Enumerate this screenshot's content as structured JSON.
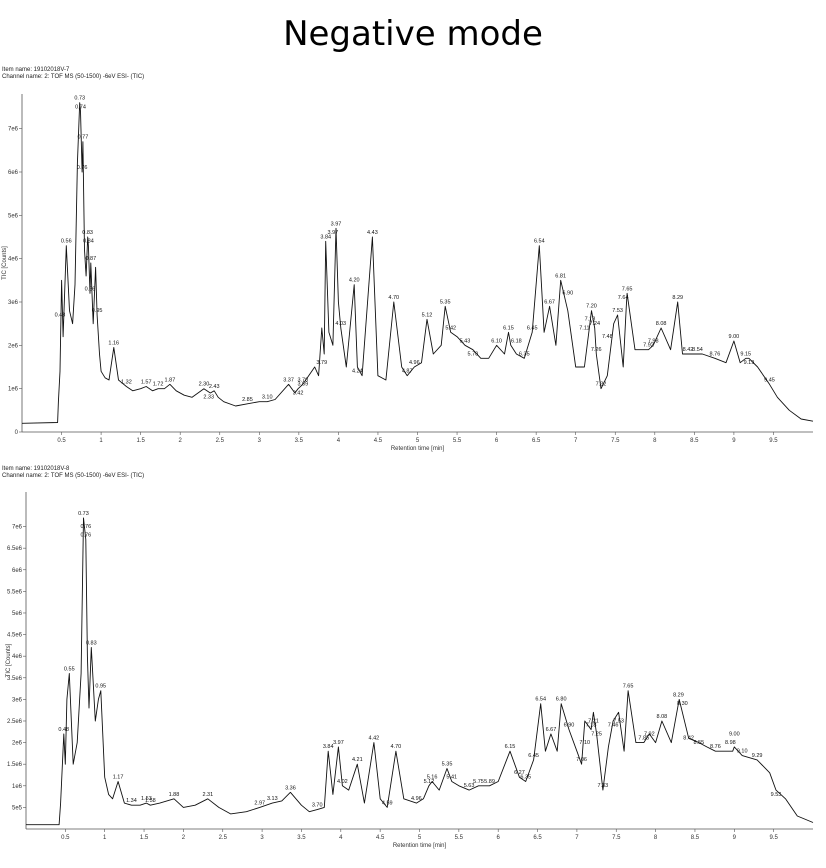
{
  "heading": "Negative mode",
  "chart_data": [
    {
      "type": "line",
      "item_name": "Item name: 19102018V-7",
      "channel_name": "Channel name: 2: TOF MS (50-1500) -6eV ESI- (TIC)",
      "xlabel": "Retention time [min]",
      "ylabel": "TIC [Counts]",
      "xlim": [
        0,
        10
      ],
      "ylim": [
        0,
        7800000
      ],
      "xticks": [
        0.5,
        1,
        1.5,
        2,
        2.5,
        3,
        3.5,
        4,
        4.5,
        5,
        5.5,
        6,
        6.5,
        7,
        7.5,
        8,
        8.5,
        9,
        9.5
      ],
      "xtick_labels": [
        "0.5",
        "1",
        "1.5",
        "2",
        "2.5",
        "3",
        "3.5",
        "4",
        "4.5",
        "5",
        "5.5",
        "6",
        "6.5",
        "7",
        "7.5",
        "8",
        "8.5",
        "9",
        "9.5"
      ],
      "yticks": [
        0,
        1000000,
        2000000,
        3000000,
        4000000,
        5000000,
        6000000,
        7000000
      ],
      "ytick_labels": [
        "0",
        "1e6",
        "2e6",
        "3e6",
        "4e6",
        "5e6",
        "6e6",
        "7e6"
      ],
      "x": [
        0,
        0.45,
        0.46,
        0.48,
        0.5,
        0.52,
        0.56,
        0.6,
        0.64,
        0.67,
        0.7,
        0.73,
        0.74,
        0.76,
        0.77,
        0.79,
        0.81,
        0.83,
        0.84,
        0.86,
        0.87,
        0.9,
        0.93,
        0.95,
        0.98,
        1.0,
        1.05,
        1.1,
        1.16,
        1.22,
        1.32,
        1.4,
        1.5,
        1.57,
        1.65,
        1.72,
        1.8,
        1.87,
        1.95,
        2.05,
        2.15,
        2.3,
        2.38,
        2.43,
        2.48,
        2.55,
        2.7,
        2.85,
        3.0,
        3.1,
        3.2,
        3.37,
        3.45,
        3.49,
        3.55,
        3.7,
        3.75,
        3.79,
        3.82,
        3.84,
        3.88,
        3.93,
        3.97,
        4.0,
        4.03,
        4.1,
        4.2,
        4.24,
        4.3,
        4.43,
        4.5,
        4.6,
        4.7,
        4.8,
        4.87,
        4.96,
        5.05,
        5.12,
        5.2,
        5.3,
        5.35,
        5.42,
        5.5,
        5.6,
        5.7,
        5.8,
        5.9,
        6.0,
        6.1,
        6.15,
        6.18,
        6.25,
        6.35,
        6.45,
        6.54,
        6.6,
        6.67,
        6.75,
        6.81,
        6.9,
        7.0,
        7.11,
        7.18,
        7.2,
        7.24,
        7.26,
        7.32,
        7.4,
        7.48,
        7.53,
        7.6,
        7.64,
        7.65,
        7.75,
        7.92,
        7.98,
        8.08,
        8.2,
        8.29,
        8.35,
        8.42,
        8.54,
        8.6,
        8.76,
        8.9,
        9.0,
        9.08,
        9.15,
        9.19,
        9.3,
        9.45,
        9.55,
        9.7,
        9.85,
        10.0
      ],
      "y": [
        200000,
        220000,
        700000,
        1400000,
        3500000,
        2200000,
        4300000,
        2800000,
        2500000,
        3400000,
        6200000,
        7600000,
        7400000,
        6000000,
        6700000,
        4200000,
        3600000,
        4500000,
        4300000,
        3200000,
        3900000,
        2500000,
        3800000,
        2700000,
        1800000,
        1400000,
        1250000,
        1200000,
        1950000,
        1200000,
        1050000,
        950000,
        1000000,
        1050000,
        950000,
        1000000,
        1000000,
        1100000,
        950000,
        850000,
        800000,
        1000000,
        900000,
        950000,
        800000,
        700000,
        600000,
        650000,
        700000,
        700000,
        750000,
        1100000,
        900000,
        1000000,
        1100000,
        1500000,
        1300000,
        2400000,
        1800000,
        4400000,
        2300000,
        2000000,
        4700000,
        3000000,
        2400000,
        1500000,
        3400000,
        1500000,
        1300000,
        4500000,
        1300000,
        1200000,
        3000000,
        1500000,
        1300000,
        1500000,
        1600000,
        2600000,
        1800000,
        2000000,
        2900000,
        2300000,
        2200000,
        2000000,
        1900000,
        1700000,
        1700000,
        2000000,
        1800000,
        2300000,
        2000000,
        1800000,
        1700000,
        2300000,
        4300000,
        2300000,
        2900000,
        2000000,
        3500000,
        2800000,
        1500000,
        1500000,
        2500000,
        2800000,
        2400000,
        1800000,
        1000000,
        1300000,
        2500000,
        2700000,
        1500000,
        2900000,
        3200000,
        1900000,
        1900000,
        2000000,
        2400000,
        1900000,
        3000000,
        1800000,
        1800000,
        1800000,
        1800000,
        1700000,
        1600000,
        2100000,
        1600000,
        1700000,
        1700000,
        1500000,
        1100000,
        800000,
        500000,
        300000,
        250000
      ]
    },
    {
      "type": "line",
      "item_name": "Item name: 19102018V-8",
      "channel_name": "Channel name: 2: TOF MS (50-1500) -6eV ESI- (TIC)",
      "xlabel": "Retention time [min]",
      "ylabel": "TIC [Counts]",
      "xlim": [
        0,
        10
      ],
      "ylim": [
        0,
        7800000
      ],
      "xticks": [
        0.5,
        1,
        1.5,
        2,
        2.5,
        3,
        3.5,
        4,
        4.5,
        5,
        5.5,
        6,
        6.5,
        7,
        7.5,
        8,
        8.5,
        9,
        9.5
      ],
      "xtick_labels": [
        "0.5",
        "1",
        "1.5",
        "2",
        "2.5",
        "3",
        "3.5",
        "4",
        "4.5",
        "5",
        "5.5",
        "6",
        "6.5",
        "7",
        "7.5",
        "8",
        "8.5",
        "9",
        "9.5"
      ],
      "yticks": [
        500000,
        1000000,
        1500000,
        2000000,
        2500000,
        3000000,
        3500000,
        4000000,
        4500000,
        5000000,
        5500000,
        6000000,
        6500000,
        7000000
      ],
      "ytick_labels": [
        "5e5",
        "1e6",
        "1.5e6",
        "2e6",
        "2.5e6",
        "3e6",
        "3.5e6",
        "4e6",
        "4.5e6",
        "5e6",
        "5.5e6",
        "6e6",
        "6.5e6",
        "7e6"
      ],
      "x": [
        0,
        0.42,
        0.44,
        0.48,
        0.5,
        0.52,
        0.55,
        0.6,
        0.65,
        0.7,
        0.73,
        0.76,
        0.78,
        0.8,
        0.83,
        0.88,
        0.92,
        0.95,
        1.0,
        1.05,
        1.1,
        1.17,
        1.25,
        1.34,
        1.45,
        1.53,
        1.58,
        1.7,
        1.88,
        2.0,
        2.15,
        2.31,
        2.45,
        2.6,
        2.8,
        2.97,
        3.13,
        3.25,
        3.36,
        3.5,
        3.6,
        3.7,
        3.79,
        3.84,
        3.9,
        3.97,
        4.02,
        4.1,
        4.21,
        4.3,
        4.42,
        4.5,
        4.59,
        4.7,
        4.8,
        4.96,
        5.05,
        5.12,
        5.16,
        5.25,
        5.35,
        5.41,
        5.5,
        5.63,
        5.75,
        5.89,
        6.0,
        6.15,
        6.27,
        6.35,
        6.45,
        6.54,
        6.6,
        6.67,
        6.75,
        6.8,
        6.9,
        7.0,
        7.06,
        7.1,
        7.18,
        7.21,
        7.25,
        7.33,
        7.4,
        7.46,
        7.53,
        7.6,
        7.65,
        7.75,
        7.85,
        7.92,
        8.0,
        8.08,
        8.2,
        8.29,
        8.3,
        8.42,
        8.55,
        8.65,
        8.76,
        8.9,
        8.98,
        9.0,
        9.1,
        9.29,
        9.45,
        9.53,
        9.65,
        9.8,
        10.0
      ],
      "y": [
        100000,
        100000,
        600000,
        2200000,
        1500000,
        3000000,
        3600000,
        1500000,
        2000000,
        3600000,
        7200000,
        6700000,
        4000000,
        2800000,
        4200000,
        2500000,
        3000000,
        3200000,
        1200000,
        800000,
        700000,
        1100000,
        600000,
        550000,
        550000,
        600000,
        550000,
        600000,
        700000,
        500000,
        550000,
        700000,
        500000,
        350000,
        400000,
        500000,
        600000,
        650000,
        850000,
        550000,
        400000,
        450000,
        500000,
        1800000,
        800000,
        1900000,
        1000000,
        900000,
        1500000,
        600000,
        2000000,
        700000,
        500000,
        1800000,
        700000,
        600000,
        700000,
        1000000,
        1100000,
        900000,
        1400000,
        1100000,
        1000000,
        900000,
        1000000,
        1000000,
        1100000,
        1800000,
        1200000,
        1100000,
        1600000,
        2900000,
        1800000,
        2200000,
        1800000,
        2900000,
        2300000,
        1800000,
        1500000,
        2500000,
        2300000,
        2700000,
        2200000,
        900000,
        1900000,
        2500000,
        2700000,
        1800000,
        3200000,
        2000000,
        2000000,
        2200000,
        2000000,
        2500000,
        2000000,
        2900000,
        3000000,
        2100000,
        2000000,
        1900000,
        1800000,
        1800000,
        1800000,
        1900000,
        1700000,
        1600000,
        1300000,
        900000,
        700000,
        300000,
        150000
      ],
      "peaks": []
    }
  ],
  "peak_labels_top": [
    {
      "t": "0.48",
      "x": 0.48,
      "y": 2600000
    },
    {
      "t": "0.56",
      "x": 0.56,
      "y": 4300000
    },
    {
      "t": "0.73",
      "x": 0.73,
      "y": 7600000
    },
    {
      "t": "0.74",
      "x": 0.74,
      "y": 7400000
    },
    {
      "t": "0.76",
      "x": 0.76,
      "y": 6000000
    },
    {
      "t": "0.77",
      "x": 0.77,
      "y": 6700000
    },
    {
      "t": "0.83",
      "x": 0.83,
      "y": 4500000
    },
    {
      "t": "0.84",
      "x": 0.84,
      "y": 4300000
    },
    {
      "t": "0.86",
      "x": 0.86,
      "y": 3200000
    },
    {
      "t": "0.87",
      "x": 0.87,
      "y": 3900000
    },
    {
      "t": "0.95",
      "x": 0.95,
      "y": 2700000
    },
    {
      "t": "1.16",
      "x": 1.16,
      "y": 1950000
    },
    {
      "t": "1.32",
      "x": 1.32,
      "y": 1050000
    },
    {
      "t": "1.57",
      "x": 1.57,
      "y": 1050000
    },
    {
      "t": "1.72",
      "x": 1.72,
      "y": 1000000
    },
    {
      "t": "1.87",
      "x": 1.87,
      "y": 1100000
    },
    {
      "t": "2.30",
      "x": 2.3,
      "y": 1000000
    },
    {
      "t": "2.43",
      "x": 2.43,
      "y": 950000
    },
    {
      "t": "2.33",
      "x": 2.36,
      "y": 700000
    },
    {
      "t": "2.85",
      "x": 2.85,
      "y": 650000
    },
    {
      "t": "3.10",
      "x": 3.1,
      "y": 700000
    },
    {
      "t": "3.37",
      "x": 3.37,
      "y": 1100000
    },
    {
      "t": "3.70",
      "x": 3.55,
      "y": 1100000
    },
    {
      "t": "3.69",
      "x": 3.55,
      "y": 1000000
    },
    {
      "t": "3.42",
      "x": 3.49,
      "y": 800000
    },
    {
      "t": "3.79",
      "x": 3.79,
      "y": 1500000
    },
    {
      "t": "3.84",
      "x": 3.84,
      "y": 4400000
    },
    {
      "t": "3.97",
      "x": 3.93,
      "y": 4500000
    },
    {
      "t": "3.97",
      "x": 3.97,
      "y": 4700000
    },
    {
      "t": "4.03",
      "x": 4.03,
      "y": 2400000
    },
    {
      "t": "4.20",
      "x": 4.2,
      "y": 3400000
    },
    {
      "t": "4.24",
      "x": 4.24,
      "y": 1300000
    },
    {
      "t": "4.43",
      "x": 4.43,
      "y": 4500000
    },
    {
      "t": "4.70",
      "x": 4.7,
      "y": 3000000
    },
    {
      "t": "4.87",
      "x": 4.87,
      "y": 1300000
    },
    {
      "t": "4.96",
      "x": 4.96,
      "y": 1500000
    },
    {
      "t": "5.12",
      "x": 5.12,
      "y": 2600000
    },
    {
      "t": "5.35",
      "x": 5.35,
      "y": 2900000
    },
    {
      "t": "5.42",
      "x": 5.42,
      "y": 2300000
    },
    {
      "t": "5.43",
      "x": 5.6,
      "y": 2000000
    },
    {
      "t": "5.70",
      "x": 5.7,
      "y": 1700000
    },
    {
      "t": "6.10",
      "x": 6.0,
      "y": 2000000
    },
    {
      "t": "6.15",
      "x": 6.15,
      "y": 2300000
    },
    {
      "t": "6.18",
      "x": 6.25,
      "y": 2000000
    },
    {
      "t": "6.35",
      "x": 6.35,
      "y": 1700000
    },
    {
      "t": "6.45",
      "x": 6.45,
      "y": 2300000
    },
    {
      "t": "6.54",
      "x": 6.54,
      "y": 4300000
    },
    {
      "t": "6.67",
      "x": 6.67,
      "y": 2900000
    },
    {
      "t": "6.81",
      "x": 6.81,
      "y": 3500000
    },
    {
      "t": "6.90",
      "x": 6.9,
      "y": 3100000
    },
    {
      "t": "7.11",
      "x": 7.11,
      "y": 2300000
    },
    {
      "t": "7.18",
      "x": 7.18,
      "y": 2500000
    },
    {
      "t": "7.20",
      "x": 7.2,
      "y": 2800000
    },
    {
      "t": "7.24",
      "x": 7.24,
      "y": 2400000
    },
    {
      "t": "7.26",
      "x": 7.26,
      "y": 1800000
    },
    {
      "t": "7.32",
      "x": 7.32,
      "y": 1000000
    },
    {
      "t": "7.48",
      "x": 7.4,
      "y": 2100000
    },
    {
      "t": "7.53",
      "x": 7.53,
      "y": 2700000
    },
    {
      "t": "7.64",
      "x": 7.6,
      "y": 3000000
    },
    {
      "t": "7.65",
      "x": 7.65,
      "y": 3200000
    },
    {
      "t": "7.92",
      "x": 7.92,
      "y": 1900000
    },
    {
      "t": "7.98",
      "x": 7.98,
      "y": 2000000
    },
    {
      "t": "8.08",
      "x": 8.08,
      "y": 2400000
    },
    {
      "t": "8.29",
      "x": 8.29,
      "y": 3000000
    },
    {
      "t": "8.42",
      "x": 8.42,
      "y": 1800000
    },
    {
      "t": "8.54",
      "x": 8.54,
      "y": 1800000
    },
    {
      "t": "8.76",
      "x": 8.76,
      "y": 1700000
    },
    {
      "t": "9.00",
      "x": 9.0,
      "y": 2100000
    },
    {
      "t": "9.15",
      "x": 9.15,
      "y": 1700000
    },
    {
      "t": "9.19",
      "x": 9.19,
      "y": 1500000
    },
    {
      "t": "9.45",
      "x": 9.45,
      "y": 1100000
    }
  ],
  "peak_labels_bottom": [
    {
      "t": "0.48",
      "x": 0.48,
      "y": 2200000
    },
    {
      "t": "0.55",
      "x": 0.55,
      "y": 3600000
    },
    {
      "t": "0.73",
      "x": 0.73,
      "y": 7200000
    },
    {
      "t": "0.76",
      "x": 0.76,
      "y": 6900000
    },
    {
      "t": "0.76",
      "x": 0.76,
      "y": 6700000
    },
    {
      "t": "0.83",
      "x": 0.83,
      "y": 4200000
    },
    {
      "t": "0.95",
      "x": 0.95,
      "y": 3200000
    },
    {
      "t": "1.17",
      "x": 1.17,
      "y": 1100000
    },
    {
      "t": "1.34",
      "x": 1.34,
      "y": 550000
    },
    {
      "t": "1.53",
      "x": 1.53,
      "y": 600000
    },
    {
      "t": "1.58",
      "x": 1.58,
      "y": 550000
    },
    {
      "t": "1.88",
      "x": 1.88,
      "y": 700000
    },
    {
      "t": "2.31",
      "x": 2.31,
      "y": 700000
    },
    {
      "t": "2.97",
      "x": 2.97,
      "y": 500000
    },
    {
      "t": "3.13",
      "x": 3.13,
      "y": 600000
    },
    {
      "t": "3.36",
      "x": 3.36,
      "y": 850000
    },
    {
      "t": "3.70",
      "x": 3.7,
      "y": 450000
    },
    {
      "t": "3.84",
      "x": 3.84,
      "y": 1800000
    },
    {
      "t": "3.97",
      "x": 3.97,
      "y": 1900000
    },
    {
      "t": "4.02",
      "x": 4.02,
      "y": 1000000
    },
    {
      "t": "4.21",
      "x": 4.21,
      "y": 1500000
    },
    {
      "t": "4.42",
      "x": 4.42,
      "y": 2000000
    },
    {
      "t": "4.59",
      "x": 4.59,
      "y": 500000
    },
    {
      "t": "4.70",
      "x": 4.7,
      "y": 1800000
    },
    {
      "t": "4.96",
      "x": 4.96,
      "y": 600000
    },
    {
      "t": "5.12",
      "x": 5.12,
      "y": 1000000
    },
    {
      "t": "5.16",
      "x": 5.16,
      "y": 1100000
    },
    {
      "t": "5.35",
      "x": 5.35,
      "y": 1400000
    },
    {
      "t": "5.41",
      "x": 5.41,
      "y": 1100000
    },
    {
      "t": "5.63",
      "x": 5.63,
      "y": 900000
    },
    {
      "t": "5.75",
      "x": 5.75,
      "y": 1000000
    },
    {
      "t": "5.89",
      "x": 5.89,
      "y": 1000000
    },
    {
      "t": "6.15",
      "x": 6.15,
      "y": 1800000
    },
    {
      "t": "6.27",
      "x": 6.27,
      "y": 1200000
    },
    {
      "t": "6.35",
      "x": 6.35,
      "y": 1100000
    },
    {
      "t": "6.45",
      "x": 6.45,
      "y": 1600000
    },
    {
      "t": "6.54",
      "x": 6.54,
      "y": 2900000
    },
    {
      "t": "6.67",
      "x": 6.67,
      "y": 2200000
    },
    {
      "t": "6.80",
      "x": 6.8,
      "y": 2900000
    },
    {
      "t": "6.90",
      "x": 6.9,
      "y": 2300000
    },
    {
      "t": "7.06",
      "x": 7.06,
      "y": 1500000
    },
    {
      "t": "7.10",
      "x": 7.1,
      "y": 1900000
    },
    {
      "t": "7.18",
      "x": 7.18,
      "y": 2300000
    },
    {
      "t": "7.21",
      "x": 7.21,
      "y": 2400000
    },
    {
      "t": "7.25",
      "x": 7.25,
      "y": 2100000
    },
    {
      "t": "7.33",
      "x": 7.33,
      "y": 900000
    },
    {
      "t": "7.46",
      "x": 7.46,
      "y": 2300000
    },
    {
      "t": "7.53",
      "x": 7.53,
      "y": 2400000
    },
    {
      "t": "7.65",
      "x": 7.65,
      "y": 3200000
    },
    {
      "t": "7.85",
      "x": 7.85,
      "y": 2000000
    },
    {
      "t": "7.92",
      "x": 7.92,
      "y": 2100000
    },
    {
      "t": "8.08",
      "x": 8.08,
      "y": 2500000
    },
    {
      "t": "8.29",
      "x": 8.29,
      "y": 3000000
    },
    {
      "t": "8.30",
      "x": 8.34,
      "y": 2800000
    },
    {
      "t": "8.42",
      "x": 8.42,
      "y": 2000000
    },
    {
      "t": "8.55",
      "x": 8.55,
      "y": 1900000
    },
    {
      "t": "8.76",
      "x": 8.76,
      "y": 1800000
    },
    {
      "t": "8.98",
      "x": 8.95,
      "y": 1900000
    },
    {
      "t": "9.00",
      "x": 9.0,
      "y": 2100000
    },
    {
      "t": "9.10",
      "x": 9.1,
      "y": 1700000
    },
    {
      "t": "9.29",
      "x": 9.29,
      "y": 1600000
    },
    {
      "t": "9.53",
      "x": 9.53,
      "y": 700000
    }
  ]
}
